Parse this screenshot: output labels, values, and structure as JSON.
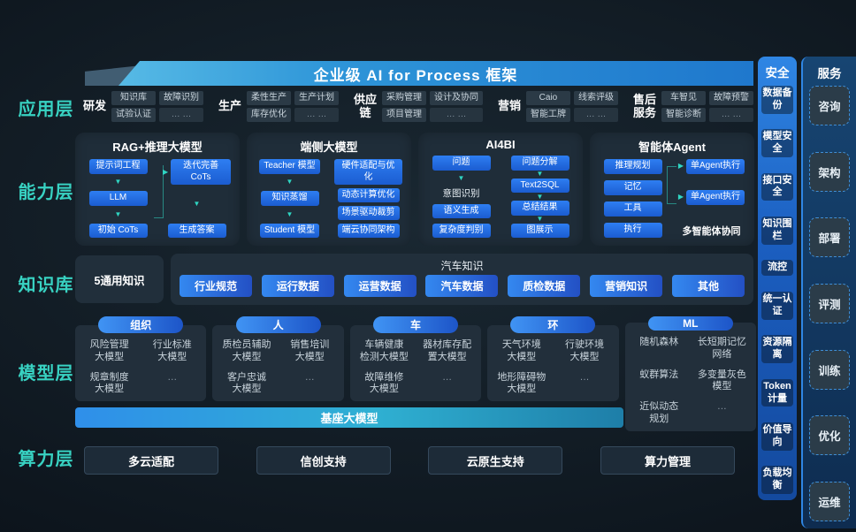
{
  "banner": {
    "title": "企业级 AI for Process 框架"
  },
  "app": {
    "label": "应用层",
    "groups": [
      {
        "name": "研发",
        "rows": [
          [
            "知识库",
            "故障识别"
          ],
          [
            "试验认证",
            "… …"
          ]
        ]
      },
      {
        "name": "生产",
        "rows": [
          [
            "柔性生产",
            "生产计划"
          ],
          [
            "库存优化",
            "… …"
          ]
        ]
      },
      {
        "name": "供应\n链",
        "rows": [
          [
            "采购管理",
            "设计及协同"
          ],
          [
            "项目管理",
            "… …"
          ]
        ]
      },
      {
        "name": "营销",
        "rows": [
          [
            "Caio",
            "线索评级"
          ],
          [
            "智能工牌",
            "… …"
          ]
        ]
      },
      {
        "name": "售后\n服务",
        "rows": [
          [
            "车智见",
            "故障预警"
          ],
          [
            "智能诊断",
            "… …"
          ]
        ]
      }
    ]
  },
  "capability": {
    "label": "能力层",
    "boxes": [
      {
        "title": "RAG+推理大模型",
        "columns": [
          {
            "items": [
              {
                "type": "btn",
                "label": "提示词工程"
              },
              {
                "type": "arrow"
              },
              {
                "type": "btn",
                "label": "LLM"
              },
              {
                "type": "arrow"
              },
              {
                "type": "btn",
                "label": "初始 CoTs"
              }
            ]
          },
          {
            "items": [
              {
                "type": "btn",
                "label": "迭代完善CoTs",
                "larrow": true
              },
              {
                "type": "arrow"
              },
              {
                "type": "btn",
                "label": "生成答案"
              }
            ]
          }
        ]
      },
      {
        "title": "端侧大模型",
        "columns": [
          {
            "items": [
              {
                "type": "btn",
                "label": "Teacher 模型"
              },
              {
                "type": "arrow"
              },
              {
                "type": "btn",
                "label": "知识蒸馏"
              },
              {
                "type": "arrow"
              },
              {
                "type": "btn",
                "label": "Student 模型"
              }
            ]
          },
          {
            "items": [
              {
                "type": "btn",
                "label": "硬件适配与优化"
              },
              {
                "type": "btn",
                "label": "动态计算优化"
              },
              {
                "type": "btn",
                "label": "场景驱动裁剪"
              },
              {
                "type": "btn",
                "label": "端云协同架构"
              }
            ]
          }
        ]
      },
      {
        "title": "AI4BI",
        "columns": [
          {
            "items": [
              {
                "type": "btn",
                "label": "问题"
              },
              {
                "type": "arrow"
              },
              {
                "type": "text",
                "label": "意图识别"
              },
              {
                "type": "btn",
                "label": "语义生成"
              },
              {
                "type": "btn",
                "label": "复杂度判别"
              }
            ]
          },
          {
            "items": [
              {
                "type": "btn",
                "label": "问题分解"
              },
              {
                "type": "arrow"
              },
              {
                "type": "btn",
                "label": "Text2SQL"
              },
              {
                "type": "arrow"
              },
              {
                "type": "btn",
                "label": "总结结果"
              },
              {
                "type": "arrow"
              },
              {
                "type": "btn",
                "label": "图展示"
              }
            ]
          }
        ]
      },
      {
        "title": "智能体Agent",
        "columns": [
          {
            "items": [
              {
                "type": "btn",
                "label": "推理规划"
              },
              {
                "type": "btn",
                "label": "记忆"
              },
              {
                "type": "btn",
                "label": "工具"
              },
              {
                "type": "btn",
                "label": "执行"
              }
            ]
          },
          {
            "items": [
              {
                "type": "btn",
                "label": "单Agent执行",
                "larrow": true
              },
              {
                "type": "btn",
                "label": "单Agent执行",
                "larrow": true
              },
              {
                "type": "note",
                "label": "多智能体协同"
              }
            ]
          }
        ]
      }
    ]
  },
  "knowledge": {
    "label": "知识库",
    "general": "5通用知识",
    "domain_title": "汽车知识",
    "buttons": [
      "行业规范",
      "运行数据",
      "运营数据",
      "汽车数据",
      "质检数据",
      "营销知识",
      "其他"
    ]
  },
  "model": {
    "label": "模型层",
    "foundation": "基座大模型",
    "groups": [
      {
        "pill": "组织",
        "models": [
          "风险管理\n大模型",
          "行业标准\n大模型",
          "规章制度\n大模型",
          "…"
        ]
      },
      {
        "pill": "人",
        "models": [
          "质检员辅助\n大模型",
          "销售培训\n大模型",
          "客户忠诚\n大模型",
          "…"
        ]
      },
      {
        "pill": "车",
        "models": [
          "车辆健康\n检测大模型",
          "器材库存配\n置大模型",
          "故障维修\n大模型",
          "…"
        ]
      },
      {
        "pill": "环",
        "models": [
          "天气环境\n大模型",
          "行驶环境\n大模型",
          "地形障碍物\n大模型",
          "…"
        ]
      },
      {
        "pill": "ML",
        "models": [
          "随机森林",
          "长短期记忆\n网络",
          "蚁群算法",
          "多变量灰色\n模型",
          "近似动态\n规划",
          "…"
        ]
      }
    ]
  },
  "compute": {
    "label": "算力层",
    "buttons": [
      "多云适配",
      "信创支持",
      "云原生支持",
      "算力管理"
    ]
  },
  "security": {
    "title": "安全",
    "items": [
      "数据备份",
      "模型安全",
      "接口安全",
      "知识围栏",
      "流控",
      "统一认证",
      "资源隔离",
      "Token计量",
      "价值导向",
      "负载均衡"
    ]
  },
  "service": {
    "title": "服务",
    "items": [
      "咨询",
      "架构",
      "部署",
      "评测",
      "训练",
      "优化",
      "运维"
    ]
  },
  "colors": {
    "accent_teal": "#2fd6c3",
    "accent_blue": "#2e7ef2",
    "banner_blue": "#2e95d8",
    "panel_dark": "#1f2d39"
  }
}
